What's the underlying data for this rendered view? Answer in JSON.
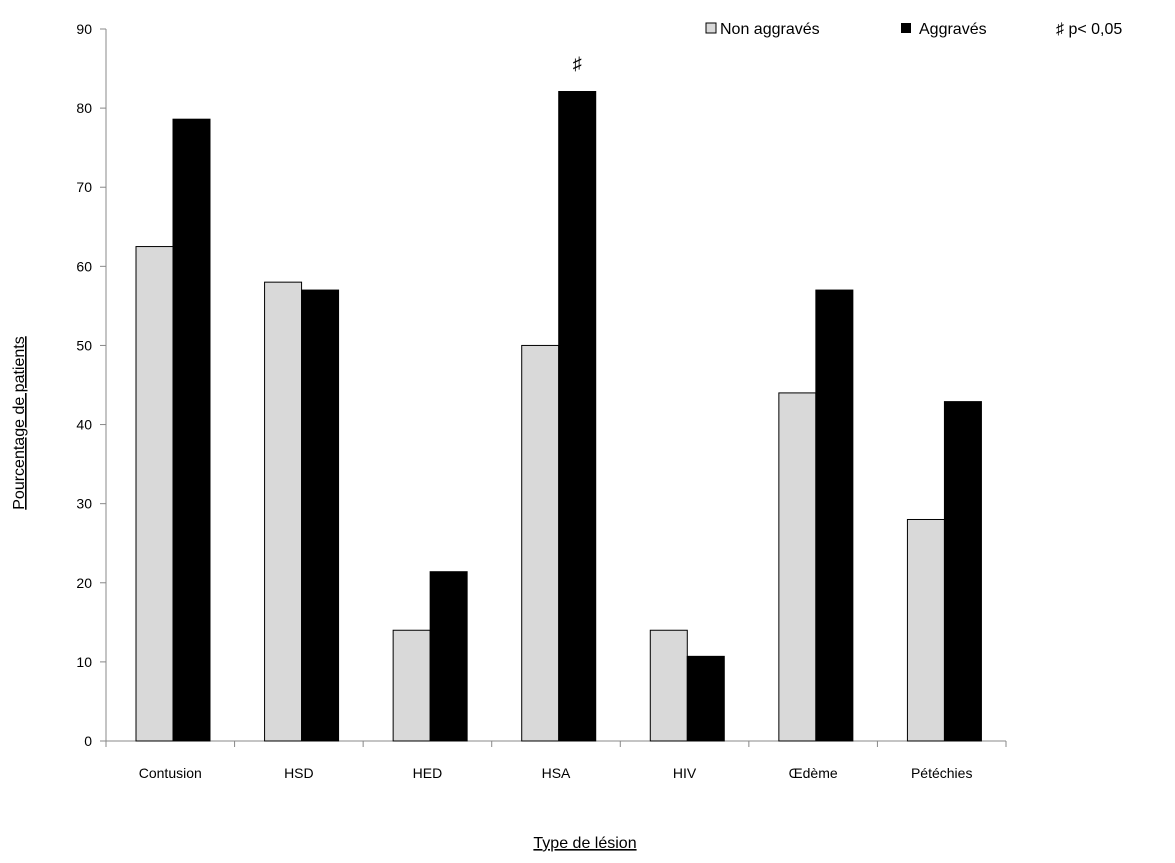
{
  "chart_data": {
    "type": "bar",
    "title": "",
    "xlabel": "Type de lésion",
    "ylabel": "Pourcentage de patients",
    "ylim": [
      0,
      90
    ],
    "yticks": [
      0,
      10,
      20,
      30,
      40,
      50,
      60,
      70,
      80,
      90
    ],
    "grid": false,
    "legend_position": "top-right",
    "categories": [
      "Contusion",
      "HSD",
      "HED",
      "HSA",
      "HIV",
      "Œdème",
      "Pétéchies"
    ],
    "series": [
      {
        "name": "Non aggravés",
        "color": "#d9d9d9",
        "values": [
          62.5,
          58,
          14,
          50,
          14,
          44,
          28
        ]
      },
      {
        "name": "Aggravés",
        "color": "#000000",
        "values": [
          78.6,
          57,
          21.4,
          82.1,
          10.7,
          57,
          42.9
        ]
      }
    ],
    "significance": {
      "symbol": "♯",
      "category": "HSA",
      "series": "Aggravés",
      "legend_label": "♯  p< 0,05"
    }
  }
}
